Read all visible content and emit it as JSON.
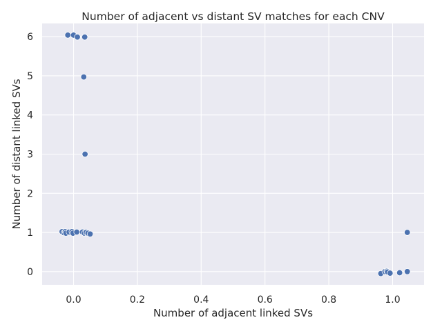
{
  "chart_data": {
    "type": "scatter",
    "title": "Number of adjacent vs distant SV matches for each CNV",
    "xlabel": "Number of adjacent linked SVs",
    "ylabel": "Number of distant linked SVs",
    "xlim": [
      -0.0985,
      1.0985
    ],
    "ylim": [
      -0.338,
      6.338
    ],
    "xticks": [
      0.0,
      0.2,
      0.4,
      0.6,
      0.8,
      1.0
    ],
    "xtick_labels": [
      "0.0",
      "0.2",
      "0.4",
      "0.6",
      "0.8",
      "1.0"
    ],
    "yticks": [
      0,
      1,
      2,
      3,
      4,
      5,
      6
    ],
    "ytick_labels": [
      "0",
      "1",
      "2",
      "3",
      "4",
      "5",
      "6"
    ],
    "grid": true,
    "point_color": "#4c72b0",
    "background_color": "#eaeaf2",
    "points": [
      {
        "x": -0.018,
        "y": 6.04
      },
      {
        "x": 0.0,
        "y": 6.04
      },
      {
        "x": 0.012,
        "y": 5.99
      },
      {
        "x": 0.035,
        "y": 5.99
      },
      {
        "x": 0.032,
        "y": 4.97
      },
      {
        "x": 0.036,
        "y": 3.0
      },
      {
        "x": -0.036,
        "y": 1.02
      },
      {
        "x": -0.03,
        "y": 0.99
      },
      {
        "x": -0.026,
        "y": 1.02
      },
      {
        "x": -0.024,
        "y": 0.98
      },
      {
        "x": -0.014,
        "y": 1.01
      },
      {
        "x": -0.005,
        "y": 1.02
      },
      {
        "x": -0.002,
        "y": 0.98
      },
      {
        "x": 0.01,
        "y": 1.01
      },
      {
        "x": 0.028,
        "y": 1.01
      },
      {
        "x": 0.034,
        "y": 0.98
      },
      {
        "x": 0.039,
        "y": 1.0
      },
      {
        "x": 0.045,
        "y": 0.98
      },
      {
        "x": 0.052,
        "y": 0.96
      },
      {
        "x": 0.963,
        "y": -0.05
      },
      {
        "x": 0.976,
        "y": 0.0
      },
      {
        "x": 0.982,
        "y": 0.01
      },
      {
        "x": 0.984,
        "y": -0.01
      },
      {
        "x": 0.992,
        "y": -0.04
      },
      {
        "x": 1.022,
        "y": -0.03
      },
      {
        "x": 1.046,
        "y": 1.0
      },
      {
        "x": 1.046,
        "y": 0.0
      }
    ]
  }
}
